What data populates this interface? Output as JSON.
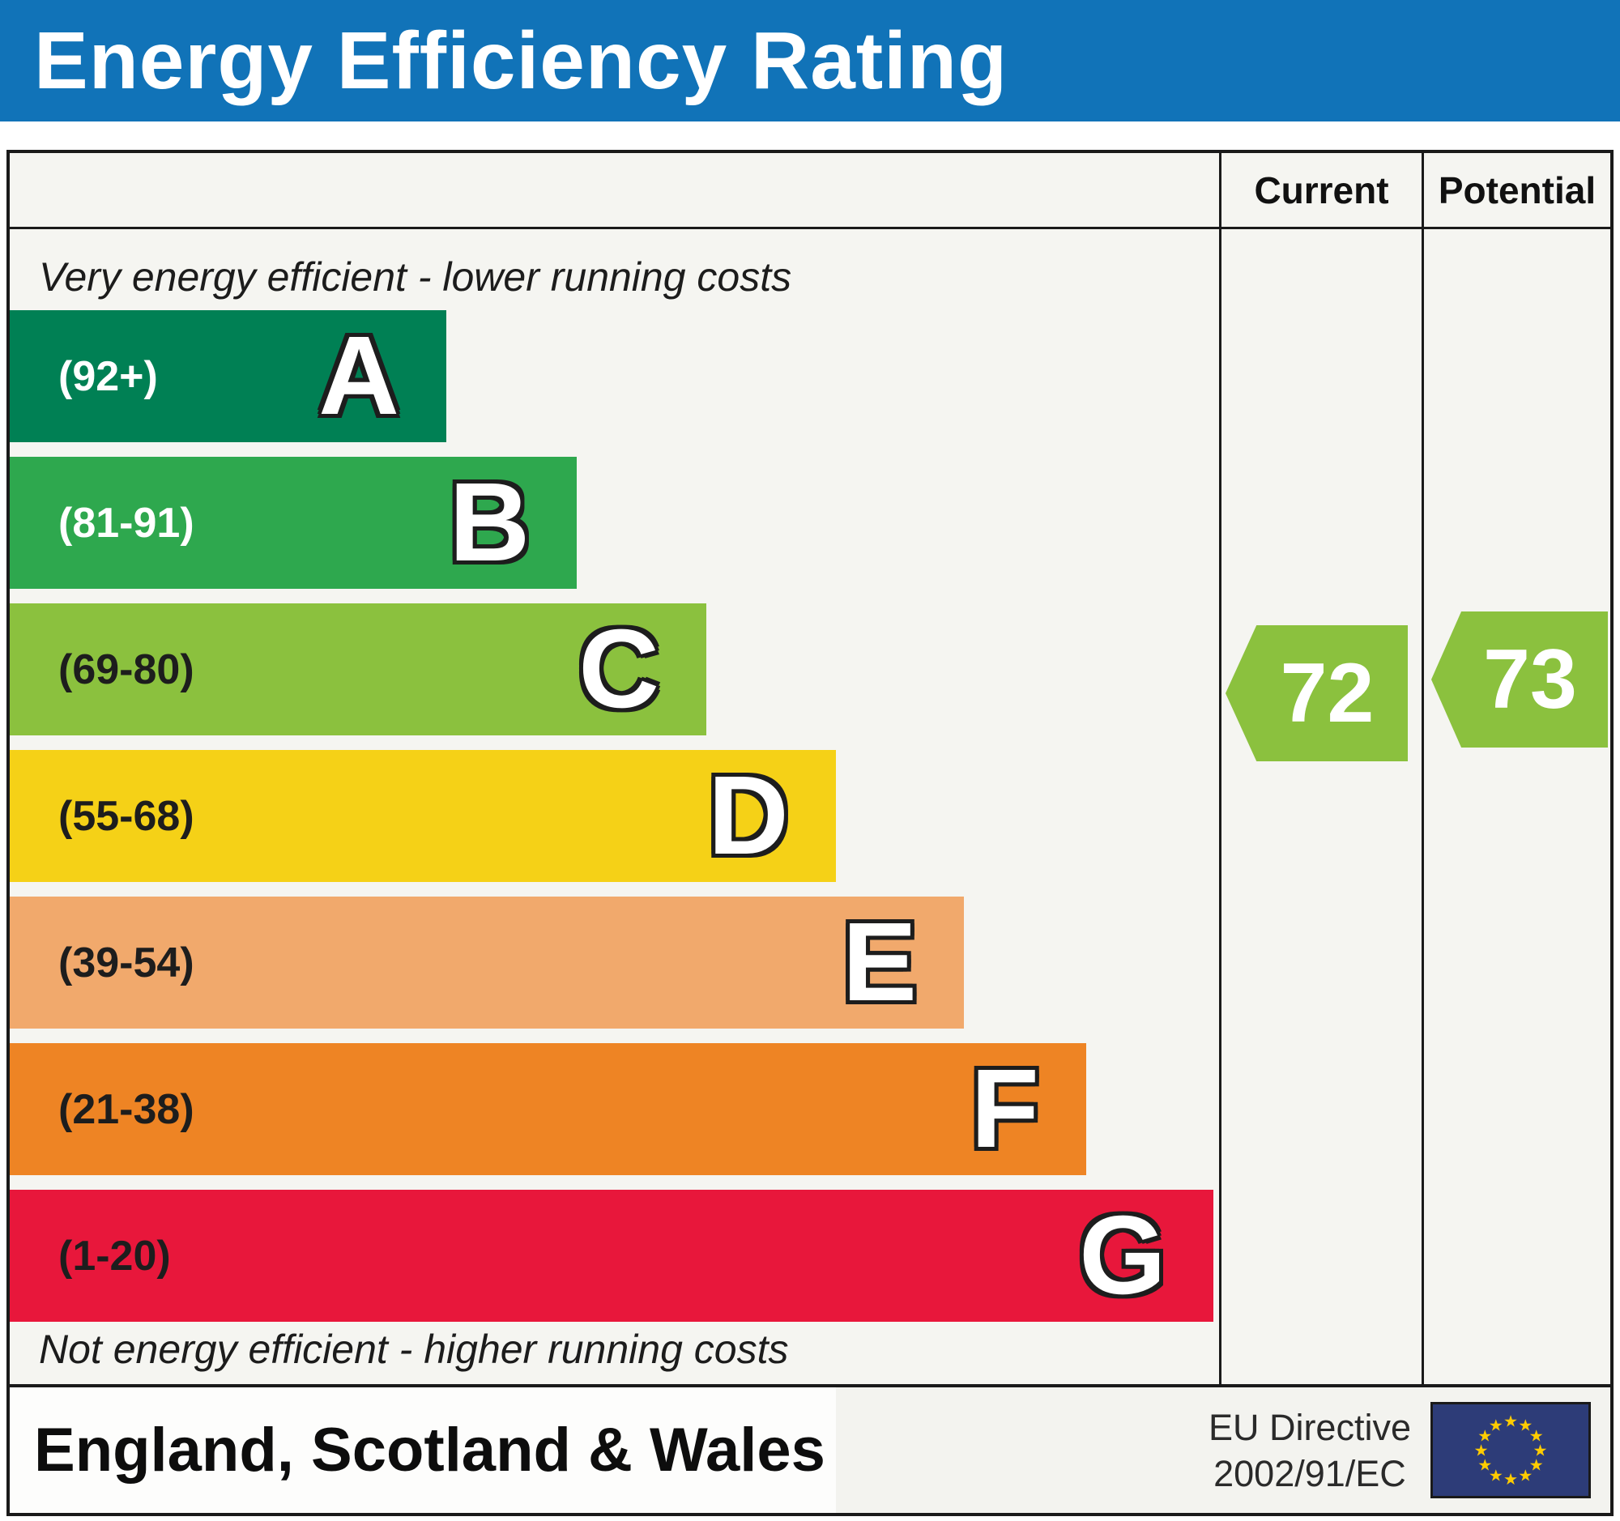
{
  "header": {
    "title": "Energy Efficiency Rating",
    "background_color": "#1173b8",
    "text_color": "#ffffff"
  },
  "columns": {
    "current_label": "Current",
    "potential_label": "Potential"
  },
  "captions": {
    "top": "Very energy efficient - lower running costs",
    "bottom": "Not energy efficient - higher running costs"
  },
  "bands": [
    {
      "letter": "A",
      "range": "(92+)",
      "color": "#008054",
      "width_pct": 36.1,
      "label_color": "#ffffff"
    },
    {
      "letter": "B",
      "range": "(81-91)",
      "color": "#2ea84e",
      "width_pct": 46.9,
      "label_color": "#ffffff"
    },
    {
      "letter": "C",
      "range": "(69-80)",
      "color": "#8bc13e",
      "width_pct": 57.6,
      "label_color": "#1d1d1d"
    },
    {
      "letter": "D",
      "range": "(55-68)",
      "color": "#f5d117",
      "width_pct": 68.3,
      "label_color": "#1d1d1d"
    },
    {
      "letter": "E",
      "range": "(39-54)",
      "color": "#f1a96c",
      "width_pct": 78.9,
      "label_color": "#1d1d1d"
    },
    {
      "letter": "F",
      "range": "(21-38)",
      "color": "#ee8424",
      "width_pct": 89.0,
      "label_color": "#1d1d1d"
    },
    {
      "letter": "G",
      "range": "(1-20)",
      "color": "#e8173b",
      "width_pct": 99.5,
      "label_color": "#1d1d1d"
    }
  ],
  "ratings": {
    "current": {
      "value": "72",
      "band": "C",
      "color": "#8bc13e"
    },
    "potential": {
      "value": "73",
      "band": "C",
      "color": "#8bc13e"
    }
  },
  "footer": {
    "region": "England, Scotland & Wales",
    "directive_line1": "EU Directive",
    "directive_line2": "2002/91/EC",
    "eu_flag": {
      "background": "#2d3c78",
      "star_color": "#ffcc00",
      "star_count": 12
    }
  },
  "chart_data": {
    "type": "bar",
    "title": "Energy Efficiency Rating",
    "categories": [
      "A",
      "B",
      "C",
      "D",
      "E",
      "F",
      "G"
    ],
    "band_ranges": [
      "92+",
      "81-91",
      "69-80",
      "55-68",
      "39-54",
      "21-38",
      "1-20"
    ],
    "band_colors": [
      "#008054",
      "#2ea84e",
      "#8bc13e",
      "#f5d117",
      "#f1a96c",
      "#ee8424",
      "#e8173b"
    ],
    "bar_length_pct": [
      36.1,
      46.9,
      57.6,
      68.3,
      78.9,
      89.0,
      99.5
    ],
    "series": [
      {
        "name": "Current",
        "value": 72,
        "band": "C"
      },
      {
        "name": "Potential",
        "value": 73,
        "band": "C"
      }
    ],
    "scale": [
      1,
      100
    ],
    "annotations": [
      "Very energy efficient - lower running costs",
      "Not energy efficient - higher running costs",
      "England, Scotland & Wales",
      "EU Directive 2002/91/EC"
    ]
  }
}
